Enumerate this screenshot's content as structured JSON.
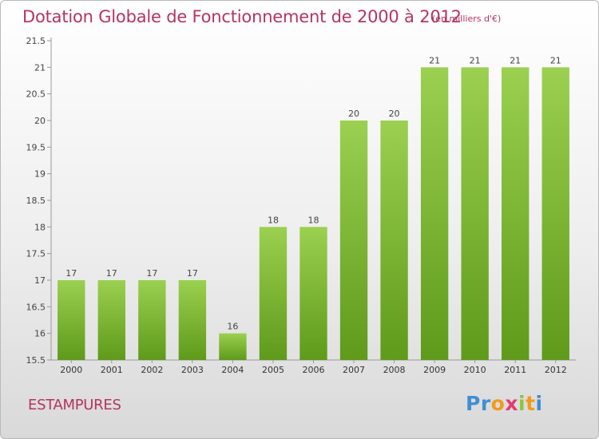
{
  "header": {
    "title": "Dotation Globale de Fonctionnement de 2000 à 2012",
    "unit": "(en milliers d'€)"
  },
  "footer": {
    "commune": "ESTAMPURES",
    "logo_text": "Proxiti"
  },
  "colors": {
    "accent": "#b5345f",
    "bar_top": "#9bd050",
    "bar_bottom": "#5f9a1a",
    "logo_blue": "#3f8fd2",
    "logo_orange": "#f29a1e",
    "logo_green": "#8bc540",
    "logo_pink": "#e23b6f"
  },
  "chart_data": {
    "type": "bar",
    "title": "Dotation Globale de Fonctionnement de 2000 à 2012",
    "subtitle": "(en milliers d'€)",
    "xlabel": "",
    "ylabel": "",
    "categories": [
      "2000",
      "2001",
      "2002",
      "2003",
      "2004",
      "2005",
      "2006",
      "2007",
      "2008",
      "2009",
      "2010",
      "2011",
      "2012"
    ],
    "values": [
      17,
      17,
      17,
      17,
      16,
      18,
      18,
      20,
      20,
      21,
      21,
      21,
      21
    ],
    "ylim": [
      15.5,
      21.5
    ],
    "yticks": [
      "15.5",
      "16",
      "16.5",
      "17",
      "17.5",
      "18",
      "18.5",
      "19",
      "19.5",
      "20",
      "20.5",
      "21",
      "21.5"
    ],
    "grid": false,
    "legend": "none"
  }
}
